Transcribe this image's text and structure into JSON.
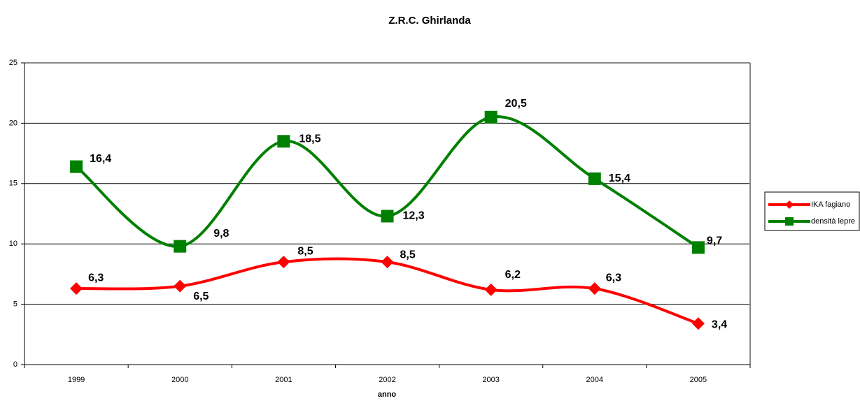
{
  "chart_data": {
    "type": "line",
    "title": "Z.R.C. Ghirlanda",
    "x_label": "anno",
    "categories": [
      "1999",
      "2000",
      "2001",
      "2002",
      "2003",
      "2004",
      "2005"
    ],
    "series": [
      {
        "name": "IKA fagiano",
        "color": "#ff0000",
        "marker": "diamond",
        "values": [
          6.3,
          6.5,
          8.5,
          8.5,
          6.2,
          6.3,
          3.4
        ],
        "value_labels": [
          "6,3",
          "6,5",
          "8,5",
          "8,5",
          "6,2",
          "6,3",
          "3,4"
        ]
      },
      {
        "name": "densità lepre",
        "color": "#008000",
        "marker": "square",
        "values": [
          16.4,
          9.8,
          18.5,
          12.3,
          20.5,
          15.4,
          9.7
        ],
        "value_labels": [
          "16,4",
          "9,8",
          "18,5",
          "12,3",
          "20,5",
          "15,4",
          "9,7"
        ]
      }
    ],
    "ylim": [
      0,
      25
    ],
    "yticks": [
      0,
      5,
      10,
      15,
      20,
      25
    ],
    "grid": true,
    "smooth": true,
    "legend": "right"
  }
}
